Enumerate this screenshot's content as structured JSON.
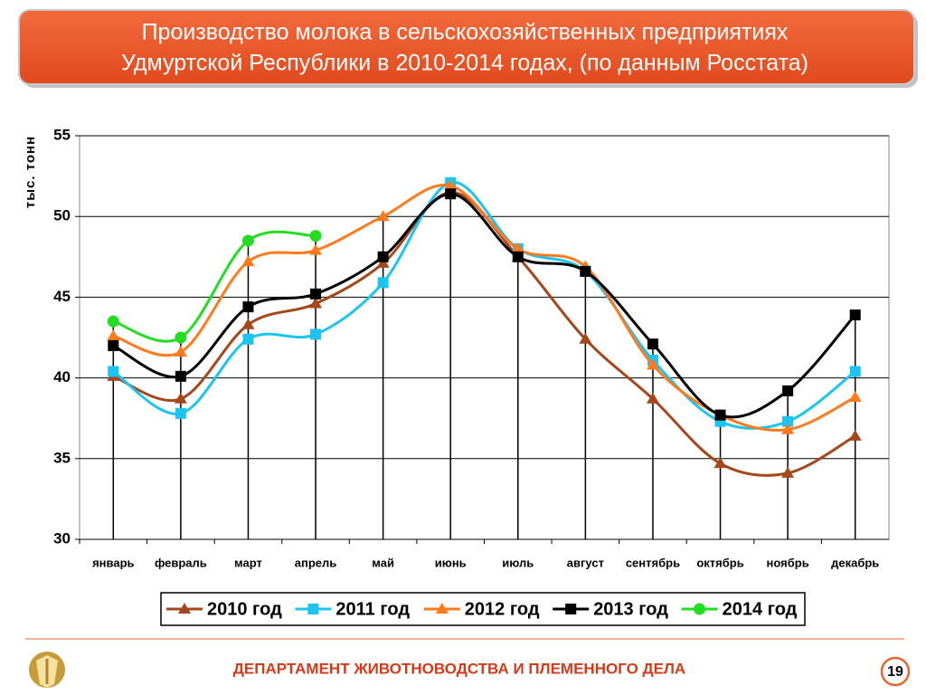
{
  "header": {
    "title_lines": [
      "Производство молока в сельскохозяйственных предприятиях",
      "Удмуртской Республики в 2010-2014 годах, (по данным Росстата)"
    ]
  },
  "chart_data": {
    "type": "line",
    "y_label": "тыс. тонн",
    "categories": [
      "январь",
      "февраль",
      "март",
      "апрель",
      "май",
      "июнь",
      "июль",
      "август",
      "сентябрь",
      "октябрь",
      "ноябрь",
      "декабрь"
    ],
    "ylim": [
      30,
      55
    ],
    "yticks": [
      30,
      35,
      40,
      45,
      50,
      55
    ],
    "grid": true,
    "legend": "bottom",
    "series": [
      {
        "name": "2010 год",
        "color": "#a4471b",
        "marker": "triangle",
        "values": [
          40.1,
          38.7,
          43.3,
          44.6,
          47.1,
          51.5,
          47.5,
          42.4,
          38.7,
          34.7,
          34.1,
          36.4
        ]
      },
      {
        "name": "2011 год",
        "color": "#1cc4f2",
        "marker": "square",
        "values": [
          40.4,
          37.8,
          42.4,
          42.7,
          45.9,
          52.1,
          48.0,
          46.6,
          41.1,
          37.3,
          37.3,
          40.4
        ]
      },
      {
        "name": "2012 год",
        "color": "#ff7a1c",
        "marker": "triangle",
        "values": [
          42.6,
          41.6,
          47.2,
          47.9,
          50.0,
          51.9,
          48.0,
          46.9,
          40.8,
          37.7,
          36.8,
          38.8
        ]
      },
      {
        "name": "2013 год",
        "color": "#000000",
        "marker": "square",
        "values": [
          42.0,
          40.1,
          44.4,
          45.2,
          47.5,
          51.4,
          47.5,
          46.6,
          42.1,
          37.7,
          39.2,
          43.9
        ]
      },
      {
        "name": "2014 год",
        "color": "#22dd22",
        "marker": "circle",
        "values": [
          43.5,
          42.5,
          48.5,
          48.8,
          null,
          null,
          null,
          null,
          null,
          null,
          null,
          null
        ]
      }
    ]
  },
  "footer": {
    "department": "ДЕПАРТАМЕНТ ЖИВОТНОВОДСТВА И ПЛЕМЕННОГО ДЕЛА",
    "page_number": 19
  }
}
